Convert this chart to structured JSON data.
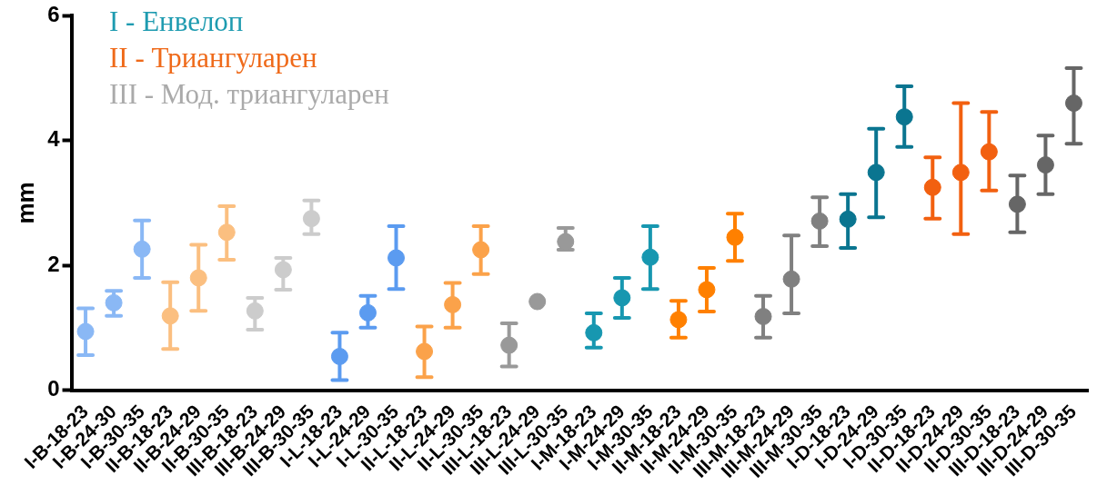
{
  "chart_data": {
    "type": "scatter",
    "ylabel": "mm",
    "ylim": [
      0,
      6
    ],
    "yticks": [
      0,
      2,
      4,
      6
    ],
    "grid": false,
    "legend": "top left",
    "marker": "circle",
    "categories": [
      "I-B-18-23",
      "I-B-24-30",
      "I-B-30-35",
      "II-B-18-23",
      "II-B-24-29",
      "II-B-30-35",
      "III-B-18-23",
      "III-B-24-29",
      "III-B-30-35",
      "I-L-18-23",
      "I-L-24-29",
      "I-L-30-35",
      "II-L-18-23",
      "II-L-24-29",
      "II-L-30-35",
      "III-L-18-23",
      "III-L-24-29",
      "III-L-30-35",
      "I-M-18-23",
      "I-M-24-29",
      "I-M-30-35",
      "II-M-18-23",
      "II-M-24-29",
      "II-M-30-35",
      "III-M-18-23",
      "III-M-24-29",
      "III-M-30-35",
      "I-D-18-23",
      "I-D-24-29",
      "I-D-30-35",
      "II-D-18-23",
      "II-D-24-29",
      "II-D-30-35",
      "III-D-18-23",
      "III-D-24-29",
      "III-D-30-35"
    ],
    "series": [
      {
        "name": "I - Енвелоп",
        "color": "#1e9bb0",
        "values": [
          0.94,
          1.4,
          2.26,
          null,
          null,
          null,
          null,
          null,
          null,
          0.54,
          1.24,
          2.12,
          null,
          null,
          null,
          null,
          null,
          null,
          0.92,
          1.48,
          2.13,
          null,
          null,
          null,
          null,
          null,
          null,
          2.74,
          3.49,
          4.38,
          null,
          null,
          null,
          null,
          null,
          null
        ],
        "errors": [
          [
            0.56,
            1.31
          ],
          [
            1.19,
            1.59
          ],
          [
            1.8,
            2.72
          ],
          null,
          null,
          null,
          null,
          null,
          null,
          [
            0.16,
            0.92
          ],
          [
            1.0,
            1.51
          ],
          [
            1.62,
            2.63
          ],
          null,
          null,
          null,
          null,
          null,
          null,
          [
            0.68,
            1.23
          ],
          [
            1.16,
            1.8
          ],
          [
            1.62,
            2.63
          ],
          null,
          null,
          null,
          null,
          null,
          null,
          [
            2.28,
            3.14
          ],
          [
            2.77,
            4.19
          ],
          [
            3.9,
            4.87
          ],
          null,
          null,
          null,
          null,
          null,
          null
        ],
        "colors": [
          "#8ab8f5",
          "#8ab8f5",
          "#8ab8f5",
          null,
          null,
          null,
          null,
          null,
          null,
          "#5b9bf0",
          "#5b9bf0",
          "#5b9bf0",
          null,
          null,
          null,
          null,
          null,
          null,
          "#1797b0",
          "#1797b0",
          "#1797b0",
          null,
          null,
          null,
          null,
          null,
          null,
          "#0a7590",
          "#0a7590",
          "#0a7590",
          null,
          null,
          null,
          null,
          null,
          null
        ]
      },
      {
        "name": "II - Триангуларен",
        "color": "#ef6a1a",
        "values": [
          null,
          null,
          null,
          1.19,
          1.8,
          2.53,
          null,
          null,
          null,
          null,
          null,
          null,
          0.62,
          1.37,
          2.25,
          null,
          null,
          null,
          null,
          null,
          null,
          1.13,
          1.61,
          2.45,
          null,
          null,
          null,
          null,
          null,
          null,
          3.25,
          3.49,
          3.82,
          null,
          null,
          null
        ],
        "errors": [
          null,
          null,
          null,
          [
            0.66,
            1.73
          ],
          [
            1.27,
            2.33
          ],
          [
            2.09,
            2.95
          ],
          null,
          null,
          null,
          null,
          null,
          null,
          [
            0.21,
            1.02
          ],
          [
            1.0,
            1.72
          ],
          [
            1.86,
            2.63
          ],
          null,
          null,
          null,
          null,
          null,
          null,
          [
            0.84,
            1.43
          ],
          [
            1.26,
            1.96
          ],
          [
            2.07,
            2.83
          ],
          null,
          null,
          null,
          null,
          null,
          null,
          [
            2.75,
            3.73
          ],
          [
            2.5,
            4.6
          ],
          [
            3.2,
            4.46
          ],
          null,
          null,
          null
        ],
        "colors": [
          null,
          null,
          null,
          "#fbbf80",
          "#fbbf80",
          "#fbbf80",
          null,
          null,
          null,
          null,
          null,
          null,
          "#fba24a",
          "#fba24a",
          "#fba24a",
          null,
          null,
          null,
          null,
          null,
          null,
          "#ff8000",
          "#ff8000",
          "#ff8000",
          null,
          null,
          null,
          null,
          null,
          null,
          "#f26010",
          "#f26010",
          "#f26010",
          null,
          null,
          null
        ]
      },
      {
        "name": "III - Мод. триангуларен",
        "color": "#aaaaaa",
        "values": [
          null,
          null,
          null,
          null,
          null,
          null,
          1.27,
          1.93,
          2.75,
          null,
          null,
          null,
          null,
          null,
          null,
          0.72,
          1.42,
          2.38,
          null,
          null,
          null,
          null,
          null,
          null,
          1.18,
          1.78,
          2.71,
          null,
          null,
          null,
          null,
          null,
          null,
          2.98,
          3.61,
          4.6
        ],
        "errors": [
          null,
          null,
          null,
          null,
          null,
          null,
          [
            0.97,
            1.48
          ],
          [
            1.61,
            2.12
          ],
          [
            2.5,
            3.04
          ],
          null,
          null,
          null,
          null,
          null,
          null,
          [
            0.38,
            1.07
          ],
          null,
          [
            2.25,
            2.6
          ],
          null,
          null,
          null,
          null,
          null,
          null,
          [
            0.84,
            1.51
          ],
          [
            1.23,
            2.48
          ],
          [
            2.31,
            3.09
          ],
          null,
          null,
          null,
          null,
          null,
          null,
          [
            2.53,
            3.44
          ],
          [
            3.14,
            4.08
          ],
          [
            3.95,
            5.16
          ]
        ],
        "colors": [
          null,
          null,
          null,
          null,
          null,
          null,
          "#cccccc",
          "#cccccc",
          "#cccccc",
          null,
          null,
          null,
          null,
          null,
          null,
          "#999999",
          "#999999",
          "#999999",
          null,
          null,
          null,
          null,
          null,
          null,
          "#808080",
          "#808080",
          "#808080",
          null,
          null,
          null,
          null,
          null,
          null,
          "#666666",
          "#666666",
          "#666666"
        ]
      }
    ]
  }
}
